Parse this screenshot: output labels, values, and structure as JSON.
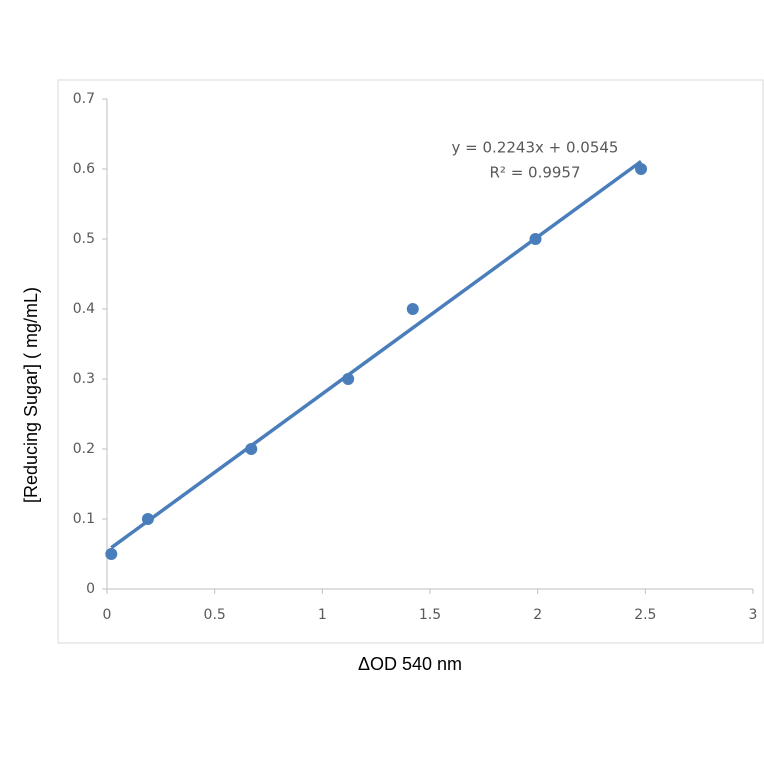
{
  "chart_data": {
    "type": "scatter",
    "x_label": "ΔOD 540 nm",
    "y_label": "[Reducing Sugar] ( mg/mL)",
    "x": [
      0.02,
      0.19,
      0.67,
      1.12,
      1.42,
      1.99,
      2.48
    ],
    "values": [
      0.05,
      0.1,
      0.2,
      0.3,
      0.4,
      0.5,
      0.6
    ],
    "color": "#4a7ebb",
    "xlim": [
      0,
      3
    ],
    "xticks": [
      0,
      0.5,
      1,
      1.5,
      2,
      2.5,
      3
    ],
    "ylim": [
      0,
      0.7
    ],
    "yticks": [
      0,
      0.1,
      0.2,
      0.3,
      0.4,
      0.5,
      0.6,
      0.7
    ],
    "trendline": {
      "slope": 0.2243,
      "intercept": 0.0545,
      "equation": "y = 0.2243x + 0.0545",
      "r_squared": "R² = 0.9957"
    }
  }
}
